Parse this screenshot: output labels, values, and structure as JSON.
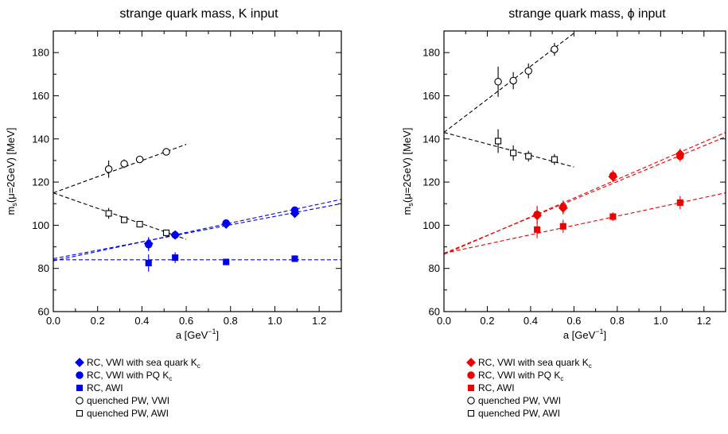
{
  "chart_data": [
    {
      "type": "scatter",
      "title": "strange quark mass,  K input",
      "xlabel": "a [GeV",
      "xlabel_sup": "−1",
      "xlabel_close": "]",
      "ylabel": "m",
      "ylabel_sub": "s",
      "ylabel_rest": "(μ=2GeV) [MeV]",
      "xlim": [
        0.0,
        1.3
      ],
      "ylim": [
        60,
        190
      ],
      "xticks": [
        "0.0",
        "0.2",
        "0.4",
        "0.6",
        "0.8",
        "1.0",
        "1.2"
      ],
      "xtick_values": [
        0.0,
        0.2,
        0.4,
        0.6,
        0.8,
        1.0,
        1.2
      ],
      "yticks": [
        "60",
        "80",
        "100",
        "120",
        "140",
        "160",
        "180"
      ],
      "ytick_values": [
        60,
        80,
        100,
        120,
        140,
        160,
        180
      ],
      "series": [
        {
          "name": "RC, VWI with sea quark K",
          "name_sub": "c",
          "marker": "diamond",
          "filled": true,
          "color": "#0000ee",
          "points": [
            [
              0.43,
              91.5,
              3
            ],
            [
              0.55,
              95.5,
              2
            ],
            [
              0.78,
              100.5,
              1.5
            ],
            [
              1.09,
              105.5,
              1.5
            ]
          ]
        },
        {
          "name": "RC, VWI with PQ K",
          "name_sub": "c",
          "marker": "circle",
          "filled": true,
          "color": "#0000ee",
          "points": [
            [
              0.43,
              91,
              3
            ],
            [
              0.55,
              95.5,
              2
            ],
            [
              0.78,
              101,
              1.5
            ],
            [
              1.09,
              107,
              1.5
            ]
          ]
        },
        {
          "name": "RC, AWI",
          "name_sub": "",
          "marker": "square",
          "filled": true,
          "color": "#0000ee",
          "points": [
            [
              0.43,
              82.5,
              4
            ],
            [
              0.55,
              85,
              2.5
            ],
            [
              0.78,
              83,
              1.5
            ],
            [
              1.09,
              84.5,
              1.5
            ]
          ]
        },
        {
          "name": "quenched PW, VWI",
          "name_sub": "",
          "marker": "circle",
          "filled": false,
          "color": "#000000",
          "points": [
            [
              0.25,
              126,
              4
            ],
            [
              0.32,
              128.5,
              2
            ],
            [
              0.39,
              130.5,
              1.5
            ],
            [
              0.51,
              134,
              1
            ]
          ]
        },
        {
          "name": "quenched PW, AWI",
          "name_sub": "",
          "marker": "square",
          "filled": false,
          "color": "#000000",
          "points": [
            [
              0.25,
              105.5,
              2.5
            ],
            [
              0.32,
              102.5,
              1.5
            ],
            [
              0.39,
              100.5,
              1.5
            ],
            [
              0.51,
              96.5,
              1
            ]
          ]
        }
      ],
      "fit_lines": [
        {
          "color": "#0000ee",
          "x0": 0,
          "y0": 83.5,
          "x1": 1.3,
          "y1": 112
        },
        {
          "color": "#0000ee",
          "x0": 0,
          "y0": 84.5,
          "x1": 1.3,
          "y1": 110
        },
        {
          "color": "#0000ee",
          "x0": 0,
          "y0": 84,
          "x1": 1.3,
          "y1": 84
        },
        {
          "color": "#000000",
          "x0": 0,
          "y0": 115,
          "x1": 0.6,
          "y1": 137.5
        },
        {
          "color": "#000000",
          "x0": 0,
          "y0": 115,
          "x1": 0.6,
          "y1": 93.5
        }
      ]
    },
    {
      "type": "scatter",
      "title": "strange quark mass,  ϕ input",
      "xlabel": "a [GeV",
      "xlabel_sup": "−1",
      "xlabel_close": "]",
      "ylabel": "m",
      "ylabel_sub": "s",
      "ylabel_rest": "(μ=2GeV) [MeV]",
      "xlim": [
        0.0,
        1.3
      ],
      "ylim": [
        60,
        190
      ],
      "xticks": [
        "0.0",
        "0.2",
        "0.4",
        "0.6",
        "0.8",
        "1.0",
        "1.2"
      ],
      "xtick_values": [
        0.0,
        0.2,
        0.4,
        0.6,
        0.8,
        1.0,
        1.2
      ],
      "yticks": [
        "60",
        "80",
        "100",
        "120",
        "140",
        "160",
        "180"
      ],
      "ytick_values": [
        60,
        80,
        100,
        120,
        140,
        160,
        180
      ],
      "series": [
        {
          "name": "RC, VWI with sea quark K",
          "name_sub": "c",
          "marker": "diamond",
          "filled": true,
          "color": "#ee0000",
          "points": [
            [
              0.43,
              104.5,
              4
            ],
            [
              0.55,
              108,
              3
            ],
            [
              0.78,
              122.5,
              2.5
            ],
            [
              1.09,
              133,
              2.5
            ]
          ]
        },
        {
          "name": "RC, VWI with PQ K",
          "name_sub": "c",
          "marker": "circle",
          "filled": true,
          "color": "#ee0000",
          "points": [
            [
              0.43,
              105,
              4
            ],
            [
              0.55,
              108.5,
              3
            ],
            [
              0.78,
              123,
              2.5
            ],
            [
              1.09,
              132,
              2.5
            ]
          ]
        },
        {
          "name": "RC, AWI",
          "name_sub": "",
          "marker": "square",
          "filled": true,
          "color": "#ee0000",
          "points": [
            [
              0.43,
              98,
              4
            ],
            [
              0.55,
              99.5,
              3
            ],
            [
              0.78,
              104,
              2
            ],
            [
              1.09,
              110.5,
              3
            ]
          ]
        },
        {
          "name": "quenched PW, VWI",
          "name_sub": "",
          "marker": "circle",
          "filled": false,
          "color": "#000000",
          "points": [
            [
              0.25,
              166.5,
              7
            ],
            [
              0.32,
              167,
              4
            ],
            [
              0.39,
              171.5,
              3.5
            ],
            [
              0.51,
              181.5,
              3
            ]
          ]
        },
        {
          "name": "quenched PW, AWI",
          "name_sub": "",
          "marker": "square",
          "filled": false,
          "color": "#000000",
          "points": [
            [
              0.25,
              139,
              5.5
            ],
            [
              0.32,
              133.5,
              3.5
            ],
            [
              0.39,
              132,
              2.5
            ],
            [
              0.51,
              130.5,
              2.5
            ]
          ]
        }
      ],
      "fit_lines": [
        {
          "color": "#ee0000",
          "x0": 0,
          "y0": 86.5,
          "x1": 1.3,
          "y1": 143
        },
        {
          "color": "#ee0000",
          "x0": 0,
          "y0": 87,
          "x1": 1.3,
          "y1": 141
        },
        {
          "color": "#ee0000",
          "x0": 0,
          "y0": 87,
          "x1": 1.3,
          "y1": 115
        },
        {
          "color": "#000000",
          "x0": 0,
          "y0": 143,
          "x1": 0.6,
          "y1": 189
        },
        {
          "color": "#000000",
          "x0": 0,
          "y0": 143,
          "x1": 0.6,
          "y1": 127
        }
      ]
    }
  ]
}
